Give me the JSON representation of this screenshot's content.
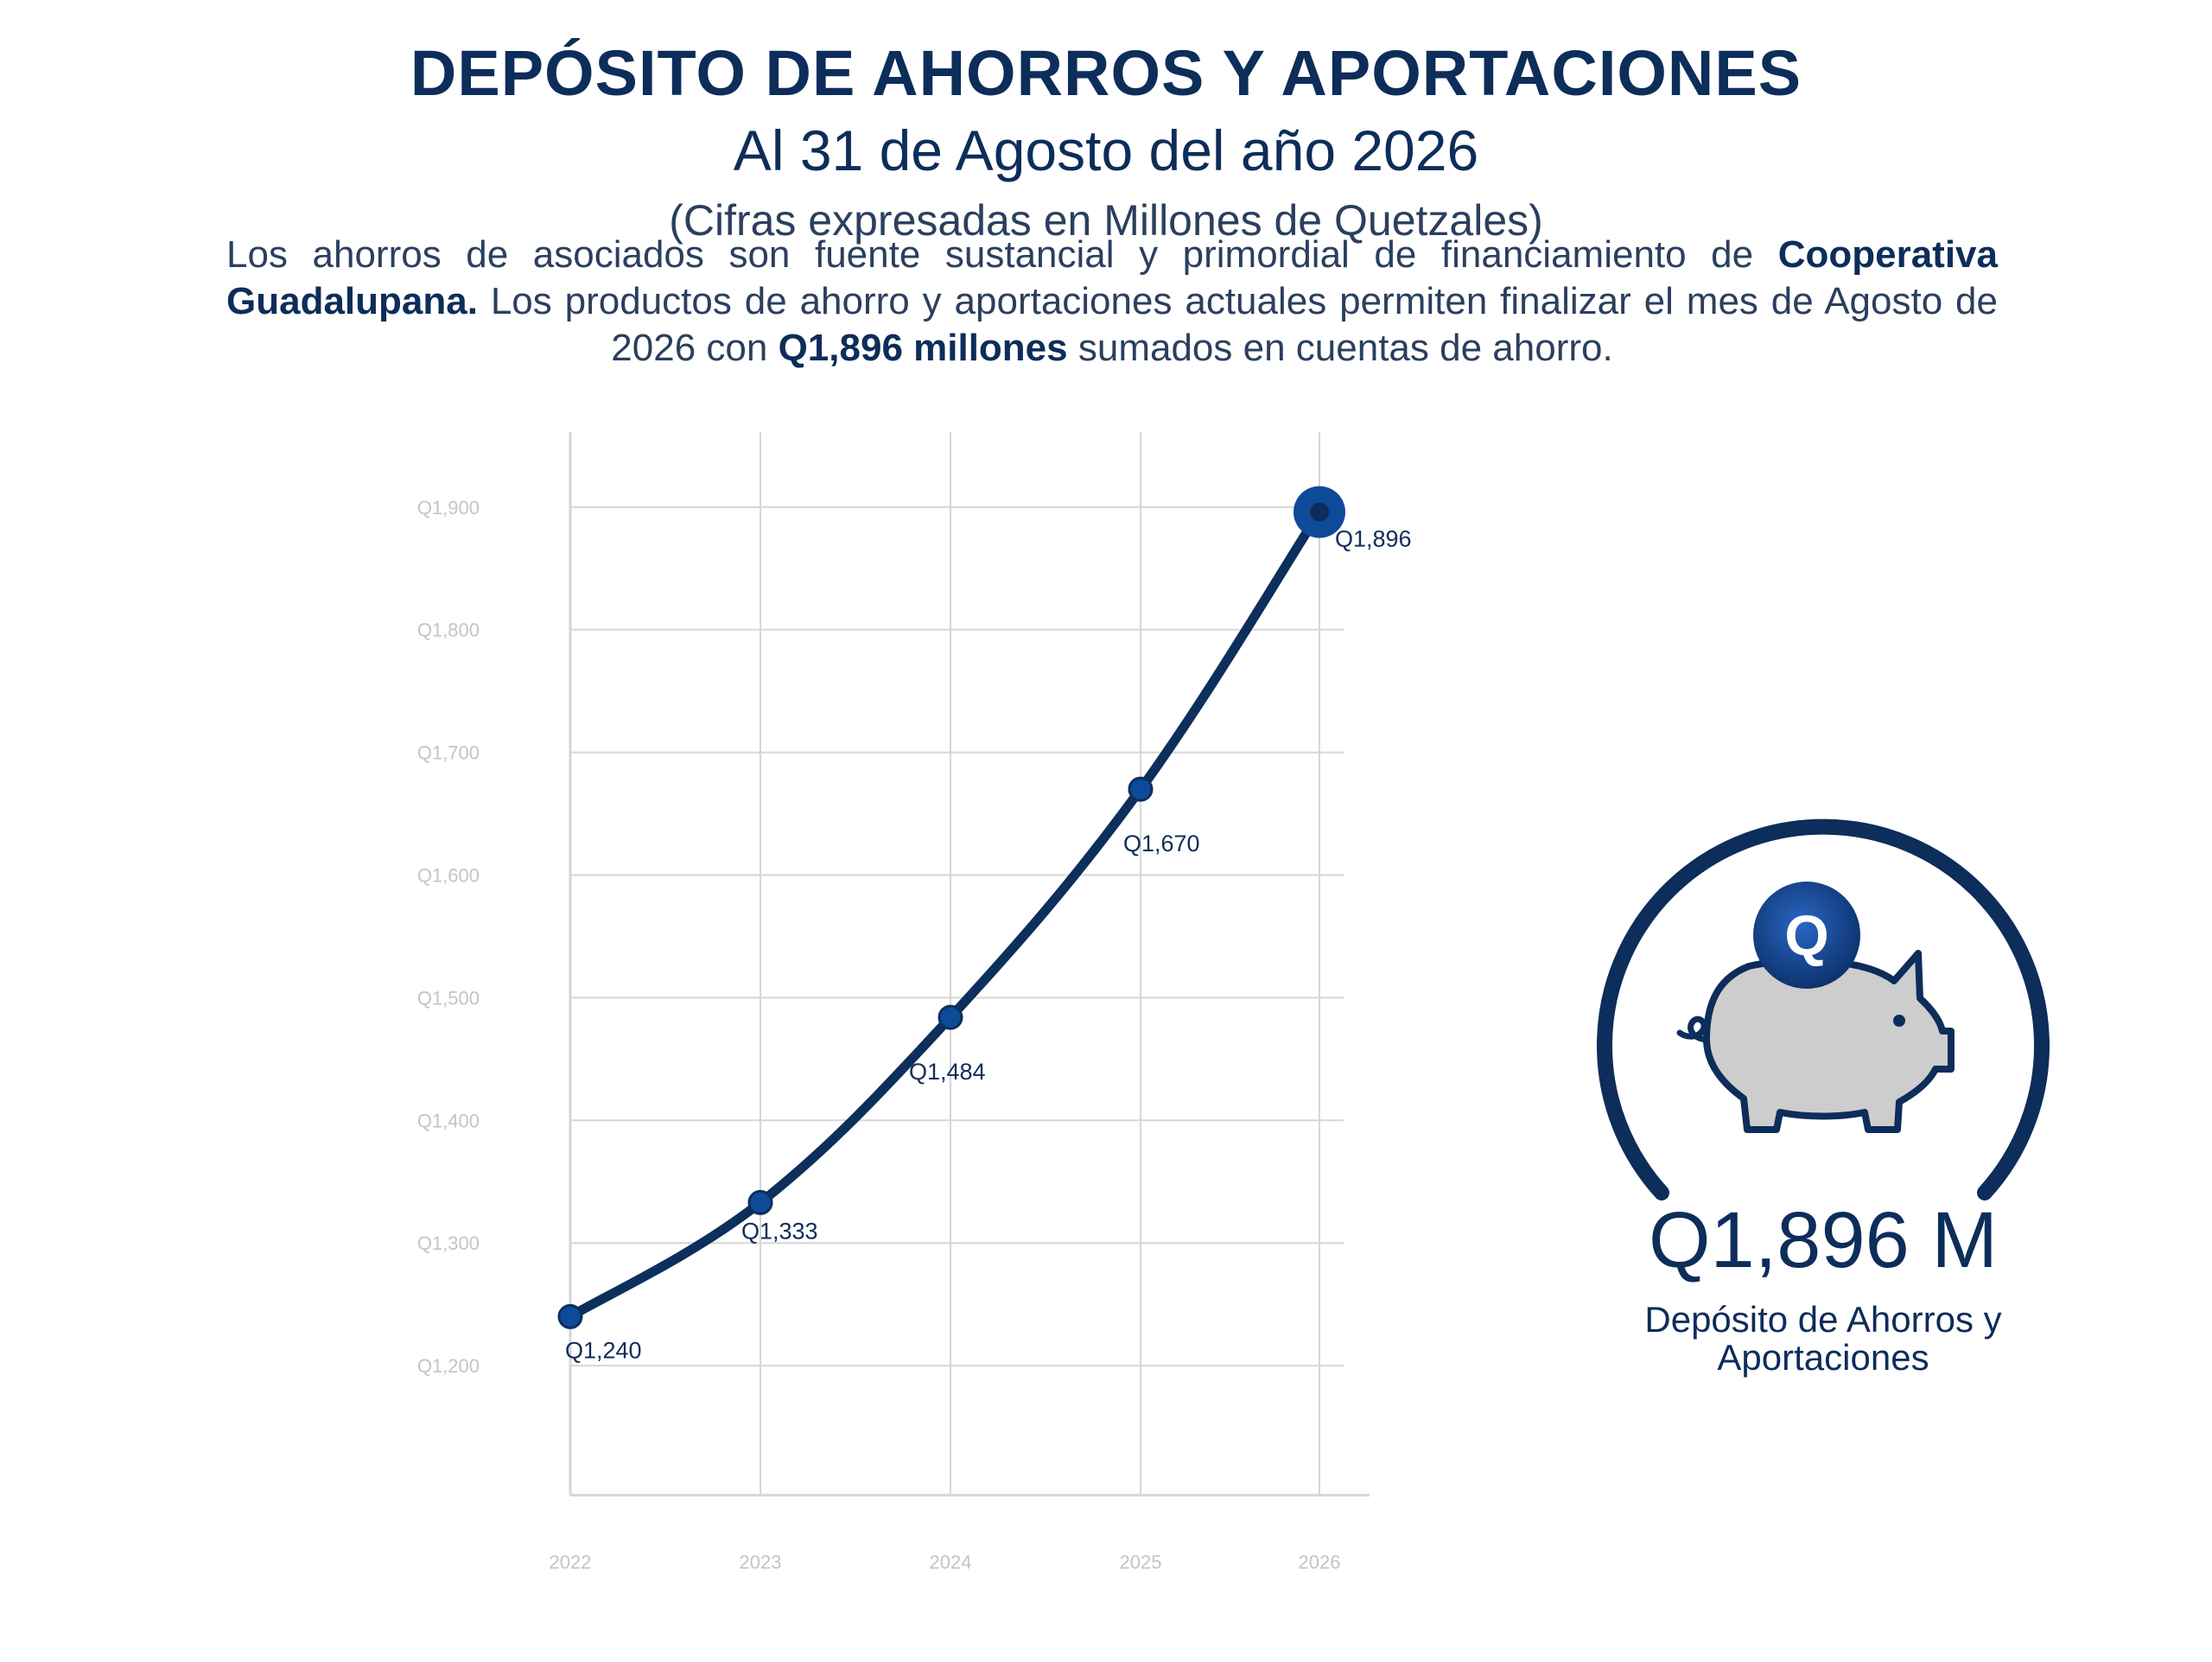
{
  "header": {
    "title": "DEPÓSITO DE AHORROS Y APORTACIONES",
    "subtitle": "Al 31 de Agosto del año 2026",
    "units": "(Cifras expresadas en Millones de Quetzales)"
  },
  "description": {
    "part1": "Los ahorros de asociados son fuente sustancial y primordial de financiamiento de ",
    "bold1": "Cooperativa Guadalupana.",
    "part2": " Los productos de ahorro y aportaciones actuales permiten finalizar el mes de Agosto de 2026 con ",
    "bold2": "Q1,896 millones",
    "part3": " sumados en cuentas de ahorro."
  },
  "kpi": {
    "value": "Q1,896 M",
    "label_line1": "Depósito de Ahorros y",
    "label_line2": "Aportaciones",
    "coin_symbol": "Q"
  },
  "colors": {
    "navy": "#0d2d5a",
    "line": "#0c2f5c",
    "accent": "#0e4a9a",
    "grid": "#d6d6d6",
    "tick": "#c4c4c4",
    "pig": "#cdcdcd"
  },
  "chart_data": {
    "type": "line",
    "x": [
      "2022",
      "2023",
      "2024",
      "2025",
      "2026"
    ],
    "series": [
      {
        "values": [
          1240,
          1333,
          1484,
          1670,
          1896
        ],
        "labels": [
          "Q1,240",
          "Q1,333",
          "Q1,484",
          "Q1,670",
          "Q1,896"
        ]
      }
    ],
    "y_ticks": [
      1200,
      1300,
      1400,
      1500,
      1600,
      1700,
      1800,
      1900
    ],
    "y_tick_labels": [
      "Q1,200",
      "Q1,300",
      "Q1,400",
      "Q1,500",
      "Q1,600",
      "Q1,700",
      "Q1,800",
      "Q1,900"
    ],
    "ylim": [
      1100,
      1940
    ],
    "grid": true,
    "highlight_last_point": true
  }
}
